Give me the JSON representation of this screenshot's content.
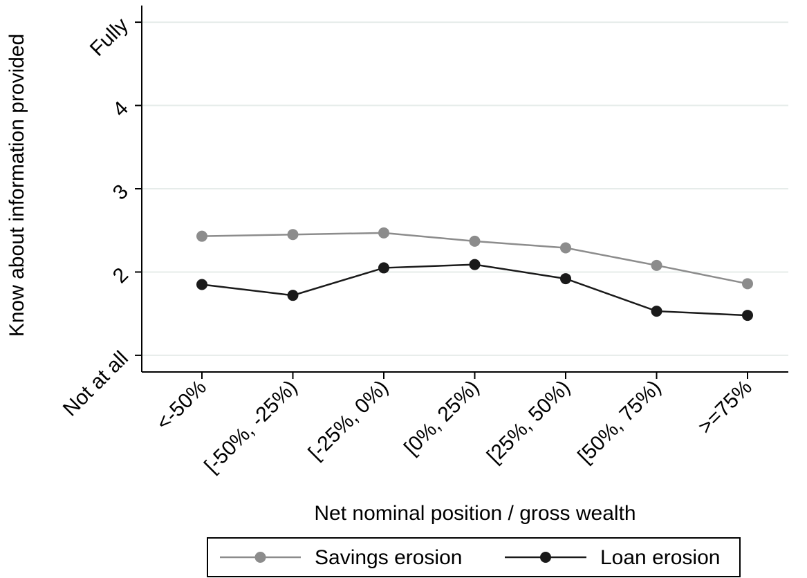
{
  "chart_data": {
    "type": "line",
    "xlabel": "Net nominal position / gross wealth",
    "ylabel": "Know about information provided",
    "categories": [
      "<-50%",
      "[-50%, -25%)",
      "[-25%, 0%)",
      "[0%, 25%)",
      "[25%, 50%)",
      "[50%, 75%)",
      ">=75%"
    ],
    "y_ticks": [
      {
        "value": 1,
        "label": "Not at all"
      },
      {
        "value": 2,
        "label": "2"
      },
      {
        "value": 3,
        "label": "3"
      },
      {
        "value": 4,
        "label": "4"
      },
      {
        "value": 5,
        "label": "Fully"
      }
    ],
    "ylim": [
      0.8,
      5.2
    ],
    "grid": true,
    "legend_position": "bottom",
    "series": [
      {
        "name": "Savings erosion",
        "color": "#8c8c8c",
        "values": [
          2.43,
          2.45,
          2.47,
          2.37,
          2.29,
          2.08,
          1.86
        ]
      },
      {
        "name": "Loan erosion",
        "color": "#1a1a1a",
        "values": [
          1.85,
          1.72,
          2.05,
          2.09,
          1.92,
          1.53,
          1.48
        ]
      }
    ]
  }
}
